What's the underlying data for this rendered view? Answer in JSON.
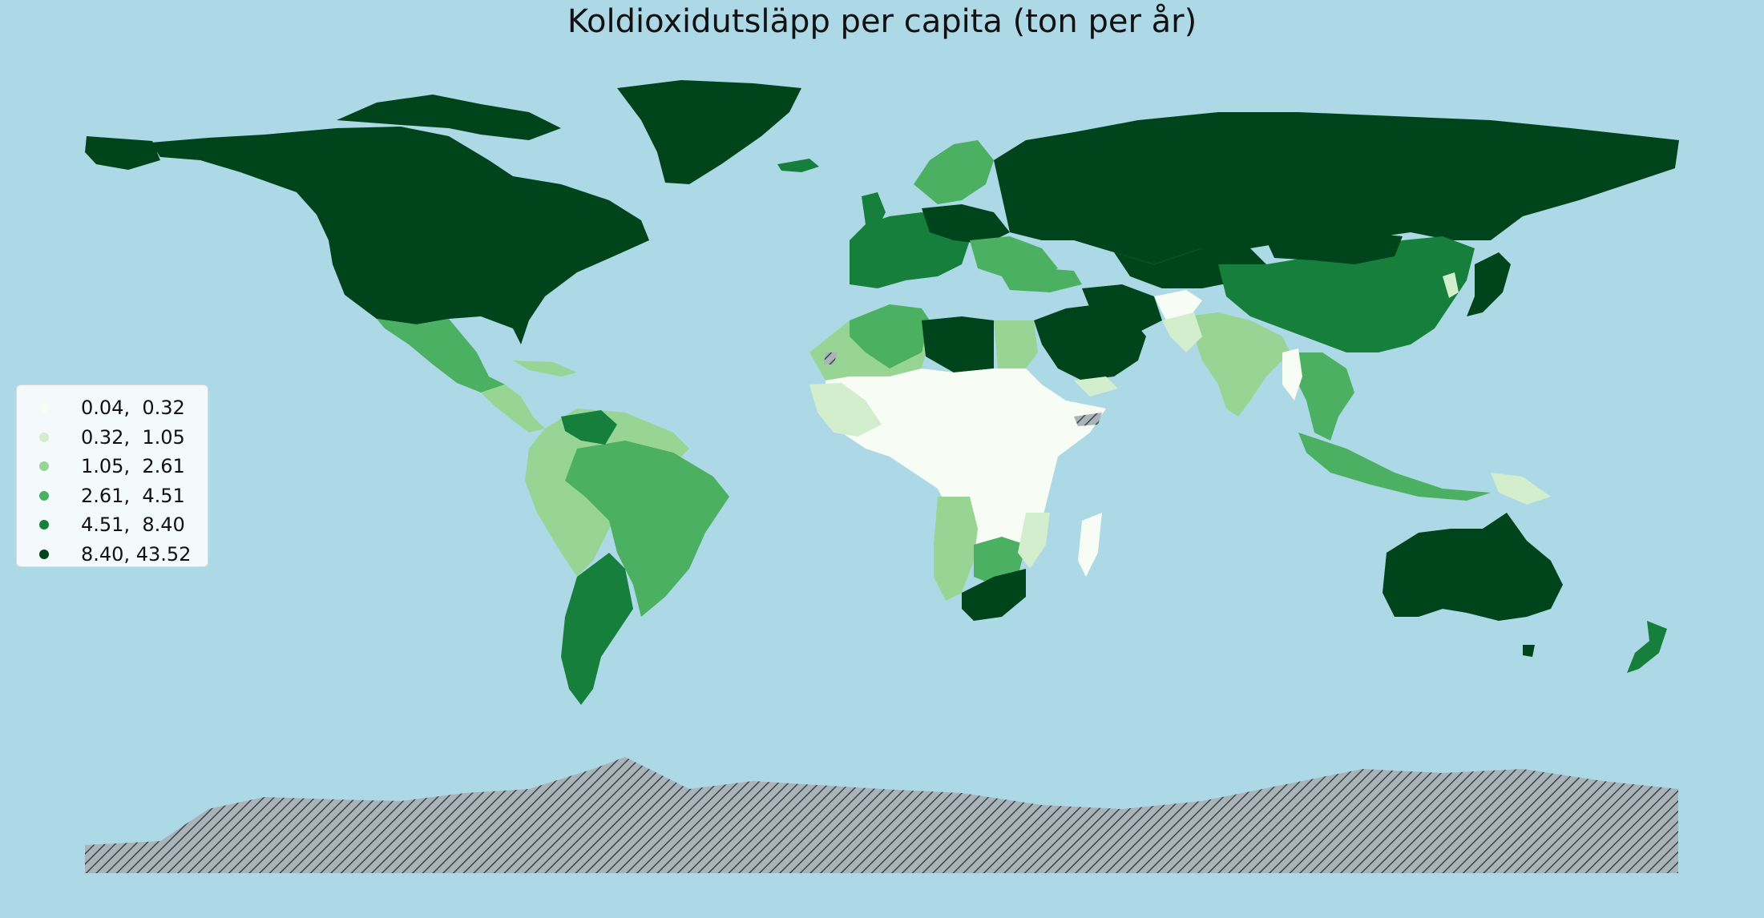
{
  "title": "Koldioxidutsläpp per capita (ton per år)",
  "colors": {
    "ocean": "#add8e6",
    "class_0": "#f7fcf5",
    "class_1": "#d3eecd",
    "class_2": "#98d594",
    "class_3": "#4bb062",
    "class_4": "#157f3b",
    "class_5": "#00441b",
    "no_data": "#a9b3b8"
  },
  "legend": {
    "items": [
      {
        "label": "0.04,  0.32",
        "color": "#f7fcf5"
      },
      {
        "label": "0.32,  1.05",
        "color": "#d3eecd"
      },
      {
        "label": "1.05,  2.61",
        "color": "#98d594"
      },
      {
        "label": "2.61,  4.51",
        "color": "#4bb062"
      },
      {
        "label": "4.51,  8.40",
        "color": "#157f3b"
      },
      {
        "label": "8.40, 43.52",
        "color": "#00441b"
      }
    ]
  }
}
